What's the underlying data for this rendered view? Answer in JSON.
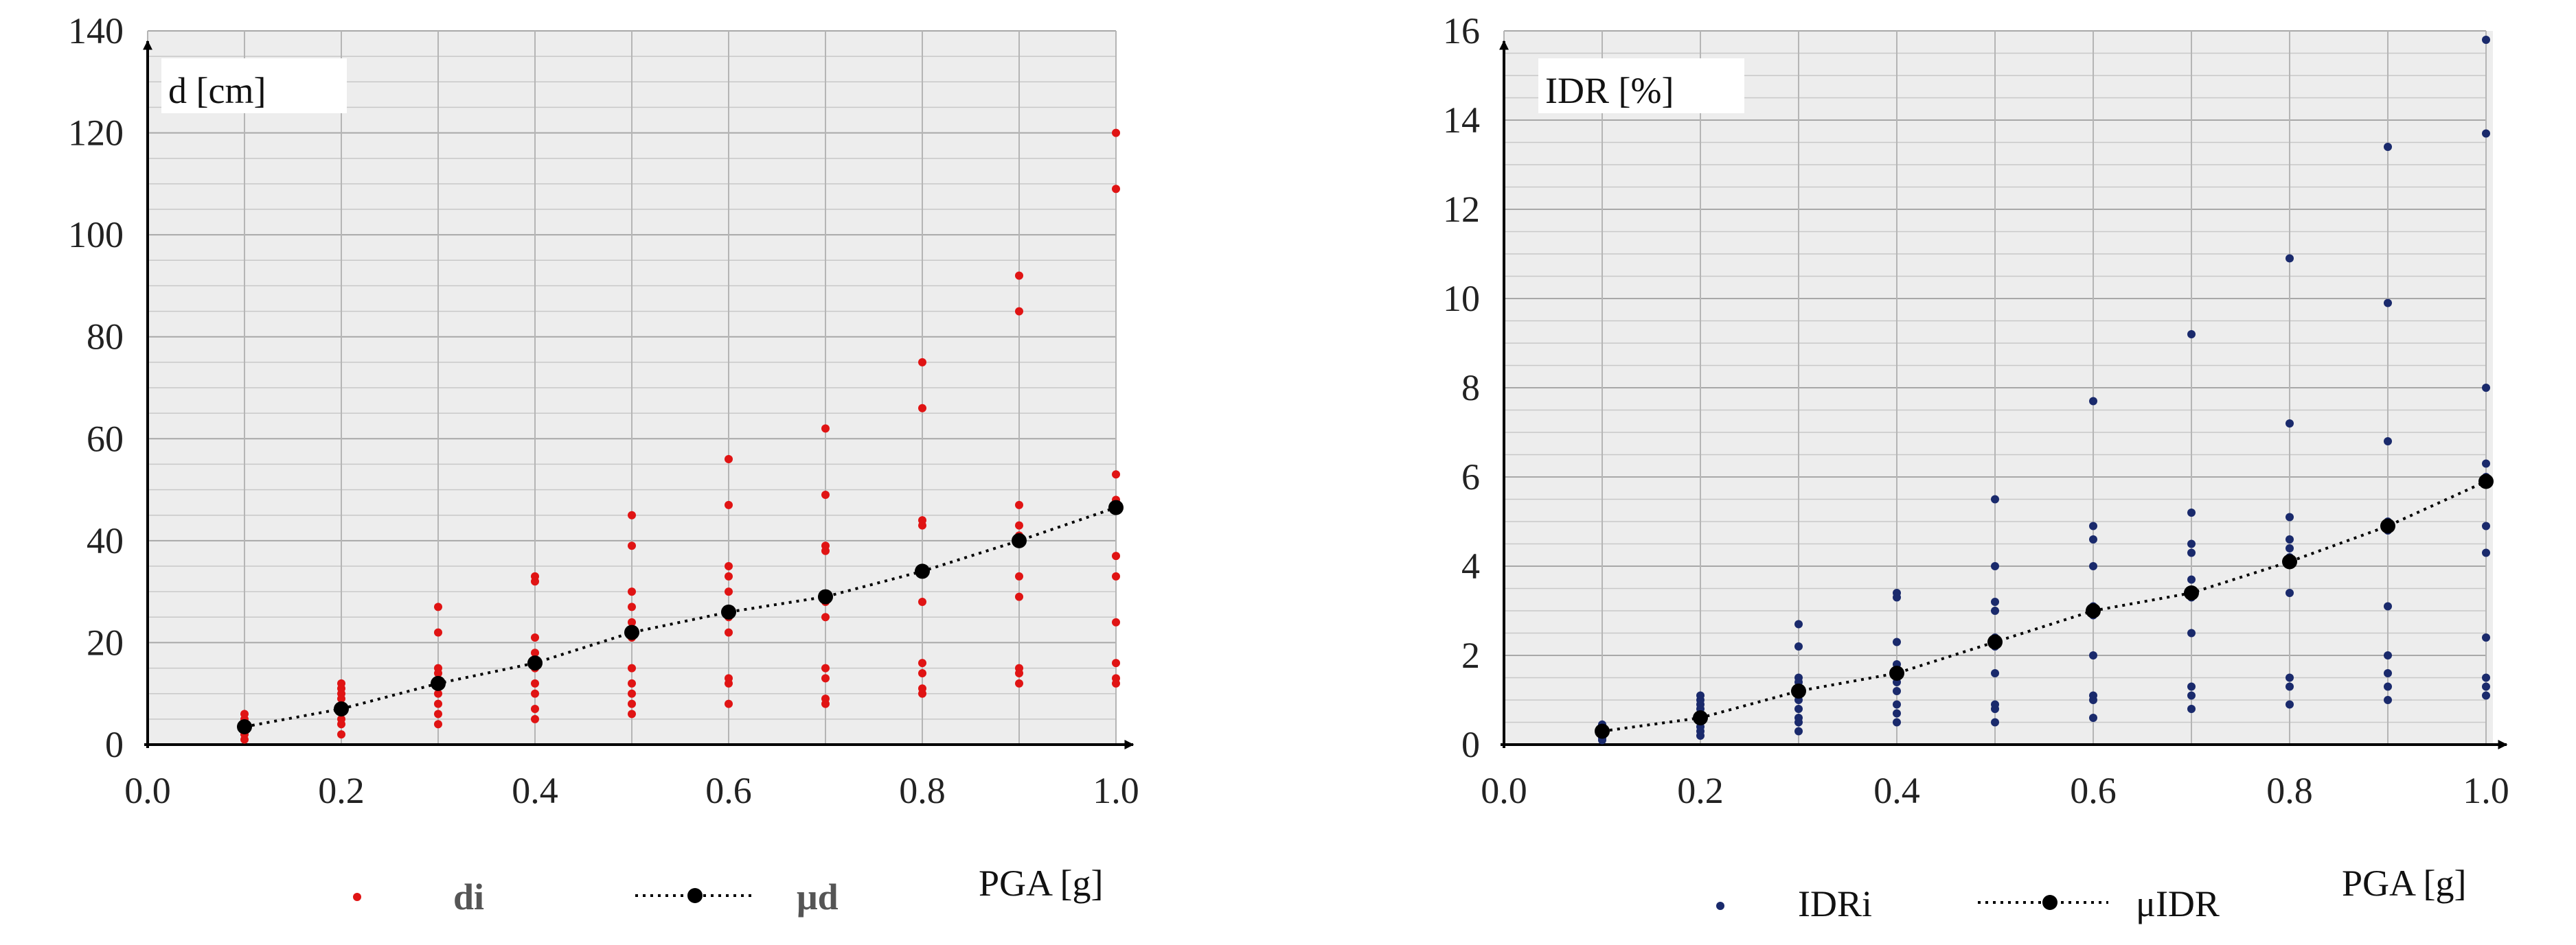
{
  "chart_data": [
    {
      "type": "scatter",
      "ylabel": "d [cm]",
      "xlabel": "PGA [g]",
      "xlim": [
        0.0,
        1.0
      ],
      "ylim": [
        0,
        140
      ],
      "xticks": [
        "0.0",
        "0.2",
        "0.4",
        "0.6",
        "0.8",
        "1.0"
      ],
      "yticks": [
        "0",
        "20",
        "40",
        "60",
        "80",
        "100",
        "120",
        "140"
      ],
      "grid": true,
      "legend": [
        "di",
        "μd"
      ],
      "series": [
        {
          "name": "di",
          "kind": "points",
          "color": "#e01414",
          "points": [
            [
              0.1,
              1
            ],
            [
              0.1,
              2
            ],
            [
              0.1,
              3
            ],
            [
              0.1,
              4
            ],
            [
              0.1,
              5
            ],
            [
              0.1,
              6
            ],
            [
              0.2,
              2
            ],
            [
              0.2,
              4
            ],
            [
              0.2,
              5
            ],
            [
              0.2,
              7
            ],
            [
              0.2,
              9
            ],
            [
              0.2,
              10
            ],
            [
              0.2,
              11
            ],
            [
              0.2,
              12
            ],
            [
              0.3,
              4
            ],
            [
              0.3,
              6
            ],
            [
              0.3,
              8
            ],
            [
              0.3,
              10
            ],
            [
              0.3,
              12
            ],
            [
              0.3,
              14
            ],
            [
              0.3,
              15
            ],
            [
              0.3,
              22
            ],
            [
              0.3,
              27
            ],
            [
              0.4,
              5
            ],
            [
              0.4,
              7
            ],
            [
              0.4,
              10
            ],
            [
              0.4,
              12
            ],
            [
              0.4,
              15
            ],
            [
              0.4,
              18
            ],
            [
              0.4,
              21
            ],
            [
              0.4,
              32
            ],
            [
              0.4,
              33
            ],
            [
              0.5,
              6
            ],
            [
              0.5,
              8
            ],
            [
              0.5,
              10
            ],
            [
              0.5,
              12
            ],
            [
              0.5,
              15
            ],
            [
              0.5,
              21
            ],
            [
              0.5,
              24
            ],
            [
              0.5,
              27
            ],
            [
              0.5,
              30
            ],
            [
              0.5,
              39
            ],
            [
              0.5,
              45
            ],
            [
              0.6,
              8
            ],
            [
              0.6,
              12
            ],
            [
              0.6,
              13
            ],
            [
              0.6,
              22
            ],
            [
              0.6,
              25
            ],
            [
              0.6,
              30
            ],
            [
              0.6,
              33
            ],
            [
              0.6,
              35
            ],
            [
              0.6,
              47
            ],
            [
              0.6,
              56
            ],
            [
              0.7,
              8
            ],
            [
              0.7,
              9
            ],
            [
              0.7,
              13
            ],
            [
              0.7,
              15
            ],
            [
              0.7,
              25
            ],
            [
              0.7,
              28
            ],
            [
              0.7,
              38
            ],
            [
              0.7,
              39
            ],
            [
              0.7,
              49
            ],
            [
              0.7,
              62
            ],
            [
              0.8,
              10
            ],
            [
              0.8,
              11
            ],
            [
              0.8,
              14
            ],
            [
              0.8,
              16
            ],
            [
              0.8,
              28
            ],
            [
              0.8,
              34
            ],
            [
              0.8,
              43
            ],
            [
              0.8,
              44
            ],
            [
              0.8,
              66
            ],
            [
              0.8,
              75
            ],
            [
              0.9,
              12
            ],
            [
              0.9,
              14
            ],
            [
              0.9,
              15
            ],
            [
              0.9,
              29
            ],
            [
              0.9,
              33
            ],
            [
              0.9,
              41
            ],
            [
              0.9,
              43
            ],
            [
              0.9,
              47
            ],
            [
              0.9,
              85
            ],
            [
              0.9,
              92
            ],
            [
              1.0,
              12
            ],
            [
              1.0,
              13
            ],
            [
              1.0,
              16
            ],
            [
              1.0,
              24
            ],
            [
              1.0,
              33
            ],
            [
              1.0,
              37
            ],
            [
              1.0,
              47
            ],
            [
              1.0,
              48
            ],
            [
              1.0,
              53
            ],
            [
              1.0,
              109
            ],
            [
              1.0,
              120
            ]
          ]
        },
        {
          "name": "μd",
          "kind": "mean",
          "color": "#000000",
          "points": [
            [
              0.1,
              3.5
            ],
            [
              0.2,
              7
            ],
            [
              0.3,
              12
            ],
            [
              0.4,
              16
            ],
            [
              0.5,
              22
            ],
            [
              0.6,
              26
            ],
            [
              0.7,
              29
            ],
            [
              0.8,
              34
            ],
            [
              0.9,
              40
            ],
            [
              1.0,
              46.5
            ]
          ]
        }
      ]
    },
    {
      "type": "scatter",
      "ylabel": "IDR [%]",
      "xlabel": "PGA [g]",
      "xlim": [
        0.0,
        1.0
      ],
      "ylim": [
        0,
        16
      ],
      "xticks": [
        "0.0",
        "0.2",
        "0.4",
        "0.6",
        "0.8",
        "1.0"
      ],
      "yticks": [
        "0",
        "2",
        "4",
        "6",
        "8",
        "10",
        "12",
        "14",
        "16"
      ],
      "grid": true,
      "legend": [
        "IDRi",
        "μIDR"
      ],
      "series": [
        {
          "name": "IDRi",
          "kind": "points",
          "color": "#1a2a6c",
          "points": [
            [
              0.1,
              0.1
            ],
            [
              0.1,
              0.15
            ],
            [
              0.1,
              0.2
            ],
            [
              0.1,
              0.25
            ],
            [
              0.1,
              0.3
            ],
            [
              0.1,
              0.35
            ],
            [
              0.1,
              0.4
            ],
            [
              0.1,
              0.45
            ],
            [
              0.2,
              0.2
            ],
            [
              0.2,
              0.3
            ],
            [
              0.2,
              0.4
            ],
            [
              0.2,
              0.5
            ],
            [
              0.2,
              0.6
            ],
            [
              0.2,
              0.7
            ],
            [
              0.2,
              0.8
            ],
            [
              0.2,
              0.9
            ],
            [
              0.2,
              1.0
            ],
            [
              0.2,
              1.1
            ],
            [
              0.3,
              0.3
            ],
            [
              0.3,
              0.5
            ],
            [
              0.3,
              0.6
            ],
            [
              0.3,
              0.8
            ],
            [
              0.3,
              1.0
            ],
            [
              0.3,
              1.2
            ],
            [
              0.3,
              1.4
            ],
            [
              0.3,
              1.5
            ],
            [
              0.3,
              2.2
            ],
            [
              0.3,
              2.7
            ],
            [
              0.4,
              0.5
            ],
            [
              0.4,
              0.7
            ],
            [
              0.4,
              0.9
            ],
            [
              0.4,
              1.2
            ],
            [
              0.4,
              1.4
            ],
            [
              0.4,
              1.6
            ],
            [
              0.4,
              1.8
            ],
            [
              0.4,
              2.3
            ],
            [
              0.4,
              3.3
            ],
            [
              0.4,
              3.4
            ],
            [
              0.5,
              0.5
            ],
            [
              0.5,
              0.8
            ],
            [
              0.5,
              0.9
            ],
            [
              0.5,
              1.6
            ],
            [
              0.5,
              2.2
            ],
            [
              0.5,
              2.4
            ],
            [
              0.5,
              3.0
            ],
            [
              0.5,
              3.2
            ],
            [
              0.5,
              4.0
            ],
            [
              0.5,
              5.5
            ],
            [
              0.6,
              0.6
            ],
            [
              0.6,
              1.0
            ],
            [
              0.6,
              1.1
            ],
            [
              0.6,
              2.0
            ],
            [
              0.6,
              2.9
            ],
            [
              0.6,
              3.1
            ],
            [
              0.6,
              4.0
            ],
            [
              0.6,
              4.6
            ],
            [
              0.6,
              4.9
            ],
            [
              0.6,
              7.7
            ],
            [
              0.7,
              0.8
            ],
            [
              0.7,
              1.1
            ],
            [
              0.7,
              1.3
            ],
            [
              0.7,
              2.5
            ],
            [
              0.7,
              3.3
            ],
            [
              0.7,
              3.7
            ],
            [
              0.7,
              4.3
            ],
            [
              0.7,
              4.5
            ],
            [
              0.7,
              5.2
            ],
            [
              0.7,
              9.2
            ],
            [
              0.8,
              0.9
            ],
            [
              0.8,
              1.3
            ],
            [
              0.8,
              1.5
            ],
            [
              0.8,
              3.4
            ],
            [
              0.8,
              4.2
            ],
            [
              0.8,
              4.4
            ],
            [
              0.8,
              4.6
            ],
            [
              0.8,
              5.1
            ],
            [
              0.8,
              7.2
            ],
            [
              0.8,
              10.9
            ],
            [
              0.9,
              1.0
            ],
            [
              0.9,
              1.3
            ],
            [
              0.9,
              1.6
            ],
            [
              0.9,
              2.0
            ],
            [
              0.9,
              3.1
            ],
            [
              0.9,
              4.8
            ],
            [
              0.9,
              5.0
            ],
            [
              0.9,
              6.8
            ],
            [
              0.9,
              9.9
            ],
            [
              0.9,
              13.4
            ],
            [
              1.0,
              1.1
            ],
            [
              1.0,
              1.3
            ],
            [
              1.0,
              1.5
            ],
            [
              1.0,
              2.4
            ],
            [
              1.0,
              4.3
            ],
            [
              1.0,
              4.9
            ],
            [
              1.0,
              6.0
            ],
            [
              1.0,
              6.3
            ],
            [
              1.0,
              8.0
            ],
            [
              1.0,
              13.7
            ],
            [
              1.0,
              15.8
            ]
          ]
        },
        {
          "name": "μIDR",
          "kind": "mean",
          "color": "#000000",
          "points": [
            [
              0.1,
              0.3
            ],
            [
              0.2,
              0.6
            ],
            [
              0.3,
              1.2
            ],
            [
              0.4,
              1.6
            ],
            [
              0.5,
              2.3
            ],
            [
              0.6,
              3.0
            ],
            [
              0.7,
              3.4
            ],
            [
              0.8,
              4.1
            ],
            [
              0.9,
              4.9
            ],
            [
              1.0,
              5.9
            ]
          ]
        }
      ]
    }
  ]
}
